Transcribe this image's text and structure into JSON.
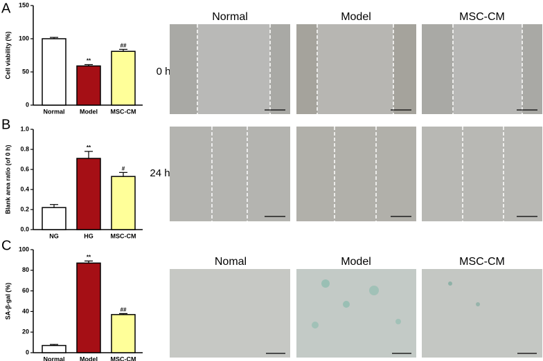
{
  "figure": {
    "panel_labels": [
      "A",
      "B",
      "C"
    ],
    "image_columns": [
      "Normal",
      "Model",
      "MSC-CM"
    ],
    "time_labels": [
      "0 h",
      "24 h"
    ],
    "staining_columns": [
      "Nomal",
      "Model",
      "MSC-CM"
    ]
  },
  "chart_data": [
    {
      "type": "bar",
      "ylabel": "Cell viability (%)",
      "categories": [
        "Normal",
        "Model",
        "MSC-CM"
      ],
      "values": [
        100,
        59,
        81
      ],
      "errors": [
        2,
        2,
        3
      ],
      "annotations": [
        null,
        "**",
        "##"
      ],
      "colors": [
        "#ffffff",
        "#a50f15",
        "#ffff99"
      ],
      "ylim": [
        0,
        150
      ],
      "yticks": [
        0,
        50,
        100,
        150
      ]
    },
    {
      "type": "bar",
      "ylabel": "Blank area ratio (of 0 h)",
      "categories": [
        "NG",
        "HG",
        "MSC-CM"
      ],
      "values": [
        0.22,
        0.71,
        0.53
      ],
      "errors": [
        0.03,
        0.07,
        0.04
      ],
      "annotations": [
        null,
        "**",
        "#"
      ],
      "colors": [
        "#ffffff",
        "#a50f15",
        "#ffff99"
      ],
      "ylim": [
        0,
        1.0
      ],
      "yticks": [
        {
          "value": 0,
          "label": "0.0"
        },
        0.2,
        0.4,
        0.6,
        0.8,
        {
          "value": 1.0,
          "label": "1.0"
        }
      ]
    },
    {
      "type": "bar",
      "ylabel": "SA-β-gal (%)",
      "categories": [
        "Normal",
        "Model",
        "MSC-CM"
      ],
      "values": [
        7,
        87,
        37
      ],
      "errors": [
        1,
        2,
        1
      ],
      "annotations": [
        null,
        "**",
        "##"
      ],
      "colors": [
        "#ffffff",
        "#a50f15",
        "#ffff99"
      ],
      "ylim": [
        0,
        100
      ],
      "yticks": [
        0,
        20,
        40,
        60,
        80,
        100
      ]
    }
  ]
}
